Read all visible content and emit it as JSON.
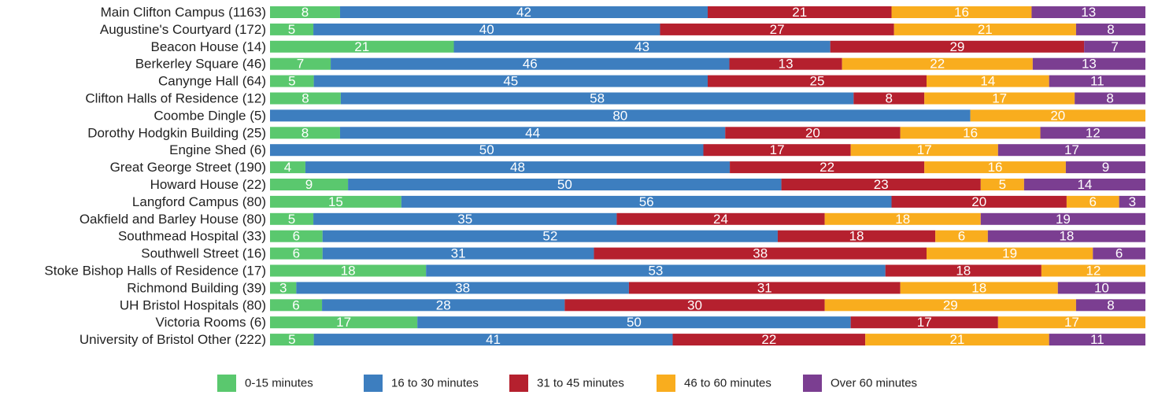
{
  "chart_data": {
    "type": "bar",
    "orientation": "horizontal",
    "stacked": true,
    "percent_scale": true,
    "title": "",
    "xlabel": "",
    "ylabel": "",
    "grid": false,
    "legend_position": "bottom",
    "categories": [
      "Main Clifton Campus (1163)",
      "Augustine's Courtyard (172)",
      "Beacon House (14)",
      "Berkerley Square (46)",
      "Canynge Hall (64)",
      "Clifton Halls of Residence (12)",
      "Coombe Dingle (5)",
      "Dorothy Hodgkin Building  (25)",
      "Engine Shed (6)",
      "Great George Street (190)",
      "Howard House (22)",
      "Langford Campus (80)",
      "Oakfield and Barley House (80)",
      "Southmead Hospital (33)",
      "Southwell Street (16)",
      "Stoke Bishop Halls of Residence (17)",
      "Richmond Building (39)",
      "UH Bristol Hospitals (80)",
      "Victoria Rooms (6)",
      "University of Bristol Other (222)"
    ],
    "series": [
      {
        "name": "0-15 minutes",
        "color": "#5ac86e",
        "values": [
          8,
          5,
          21,
          7,
          5,
          8,
          0,
          8,
          0,
          4,
          9,
          15,
          5,
          6,
          6,
          18,
          3,
          6,
          17,
          5
        ]
      },
      {
        "name": "16 to 30 minutes",
        "color": "#3d7ebf",
        "values": [
          42,
          40,
          43,
          46,
          45,
          58,
          80,
          44,
          50,
          48,
          50,
          56,
          35,
          52,
          31,
          53,
          38,
          28,
          50,
          41
        ]
      },
      {
        "name": "31 to 45 minutes",
        "color": "#b5202e",
        "values": [
          21,
          27,
          29,
          13,
          25,
          8,
          0,
          20,
          17,
          22,
          23,
          20,
          24,
          18,
          38,
          18,
          31,
          30,
          17,
          22
        ]
      },
      {
        "name": "46 to 60 minutes",
        "color": "#f9ad1e",
        "values": [
          16,
          21,
          0,
          22,
          14,
          17,
          20,
          16,
          17,
          16,
          5,
          6,
          18,
          6,
          19,
          12,
          18,
          29,
          17,
          21
        ]
      },
      {
        "name": "Over 60 minutes",
        "color": "#7b3e91",
        "values": [
          13,
          8,
          7,
          13,
          11,
          8,
          0,
          12,
          17,
          9,
          14,
          3,
          19,
          18,
          6,
          0,
          10,
          8,
          0,
          11
        ]
      }
    ]
  }
}
